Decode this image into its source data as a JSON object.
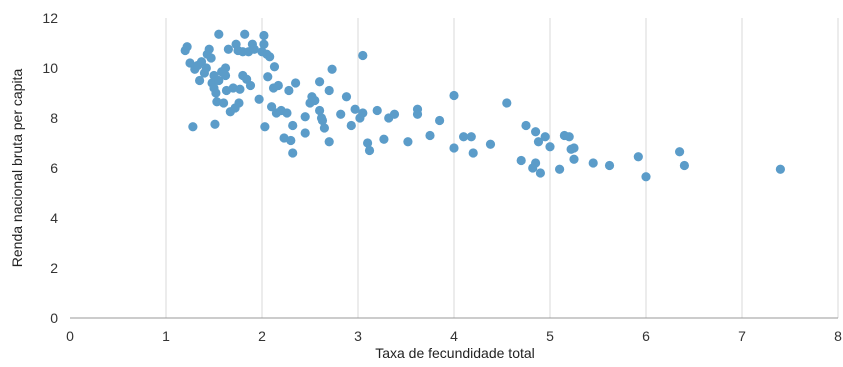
{
  "chart_data": {
    "type": "scatter",
    "title": "",
    "xlabel": "Taxa de fecundidade total",
    "ylabel": "Renda nacional bruta per capita",
    "xlim": [
      0,
      8
    ],
    "ylim": [
      0,
      12
    ],
    "x_ticks": [
      "0",
      "1",
      "2",
      "3",
      "4",
      "5",
      "6",
      "7",
      "8"
    ],
    "y_ticks": [
      "0",
      "2",
      "4",
      "6",
      "8",
      "10",
      "12"
    ],
    "grid": "vertical",
    "color": "#5b9cc9",
    "series": [
      {
        "points": [
          [
            1.2,
            10.7
          ],
          [
            1.22,
            10.85
          ],
          [
            1.25,
            10.2
          ],
          [
            1.28,
            7.65
          ],
          [
            1.3,
            9.95
          ],
          [
            1.33,
            10.1
          ],
          [
            1.35,
            9.5
          ],
          [
            1.37,
            10.25
          ],
          [
            1.4,
            9.8
          ],
          [
            1.42,
            10.0
          ],
          [
            1.43,
            10.55
          ],
          [
            1.45,
            10.75
          ],
          [
            1.47,
            10.4
          ],
          [
            1.48,
            9.4
          ],
          [
            1.5,
            9.7
          ],
          [
            1.5,
            9.2
          ],
          [
            1.51,
            7.75
          ],
          [
            1.52,
            9.0
          ],
          [
            1.53,
            8.65
          ],
          [
            1.55,
            9.5
          ],
          [
            1.55,
            11.35
          ],
          [
            1.58,
            9.85
          ],
          [
            1.6,
            8.6
          ],
          [
            1.62,
            10.0
          ],
          [
            1.62,
            9.7
          ],
          [
            1.63,
            9.1
          ],
          [
            1.65,
            10.75
          ],
          [
            1.67,
            8.25
          ],
          [
            1.7,
            9.2
          ],
          [
            1.72,
            8.4
          ],
          [
            1.73,
            10.95
          ],
          [
            1.75,
            10.7
          ],
          [
            1.76,
            8.6
          ],
          [
            1.77,
            9.15
          ],
          [
            1.8,
            10.65
          ],
          [
            1.8,
            9.7
          ],
          [
            1.82,
            11.35
          ],
          [
            1.84,
            9.55
          ],
          [
            1.86,
            10.65
          ],
          [
            1.88,
            9.3
          ],
          [
            1.9,
            10.95
          ],
          [
            1.92,
            10.75
          ],
          [
            1.97,
            8.75
          ],
          [
            2.0,
            10.65
          ],
          [
            2.02,
            11.3
          ],
          [
            2.02,
            10.95
          ],
          [
            2.03,
            7.65
          ],
          [
            2.05,
            10.55
          ],
          [
            2.06,
            9.65
          ],
          [
            2.08,
            10.45
          ],
          [
            2.1,
            8.45
          ],
          [
            2.12,
            9.2
          ],
          [
            2.13,
            10.05
          ],
          [
            2.15,
            8.2
          ],
          [
            2.17,
            9.3
          ],
          [
            2.2,
            8.3
          ],
          [
            2.23,
            7.2
          ],
          [
            2.26,
            8.2
          ],
          [
            2.28,
            9.1
          ],
          [
            2.3,
            7.1
          ],
          [
            2.32,
            6.6
          ],
          [
            2.32,
            7.7
          ],
          [
            2.35,
            9.4
          ],
          [
            2.45,
            8.05
          ],
          [
            2.45,
            7.4
          ],
          [
            2.5,
            8.6
          ],
          [
            2.52,
            8.85
          ],
          [
            2.55,
            8.7
          ],
          [
            2.6,
            8.3
          ],
          [
            2.6,
            9.45
          ],
          [
            2.62,
            8.0
          ],
          [
            2.63,
            7.9
          ],
          [
            2.65,
            7.6
          ],
          [
            2.7,
            9.1
          ],
          [
            2.7,
            7.05
          ],
          [
            2.73,
            9.95
          ],
          [
            2.82,
            8.15
          ],
          [
            2.88,
            8.85
          ],
          [
            2.93,
            7.7
          ],
          [
            2.97,
            8.35
          ],
          [
            3.02,
            8.0
          ],
          [
            3.05,
            10.5
          ],
          [
            3.05,
            8.2
          ],
          [
            3.1,
            7.0
          ],
          [
            3.12,
            6.7
          ],
          [
            3.2,
            8.3
          ],
          [
            3.27,
            7.15
          ],
          [
            3.32,
            8.0
          ],
          [
            3.38,
            8.15
          ],
          [
            3.52,
            7.05
          ],
          [
            3.62,
            8.35
          ],
          [
            3.62,
            8.15
          ],
          [
            3.75,
            7.3
          ],
          [
            3.85,
            7.9
          ],
          [
            4.0,
            8.9
          ],
          [
            4.0,
            6.8
          ],
          [
            4.1,
            7.25
          ],
          [
            4.18,
            7.25
          ],
          [
            4.2,
            6.6
          ],
          [
            4.38,
            6.95
          ],
          [
            4.55,
            8.6
          ],
          [
            4.7,
            6.3
          ],
          [
            4.75,
            7.7
          ],
          [
            4.82,
            6.0
          ],
          [
            4.85,
            6.2
          ],
          [
            4.85,
            7.45
          ],
          [
            4.88,
            7.05
          ],
          [
            4.9,
            5.8
          ],
          [
            4.95,
            7.25
          ],
          [
            5.0,
            6.85
          ],
          [
            5.1,
            5.95
          ],
          [
            5.15,
            7.3
          ],
          [
            5.2,
            7.25
          ],
          [
            5.22,
            6.75
          ],
          [
            5.25,
            6.8
          ],
          [
            5.25,
            6.35
          ],
          [
            5.45,
            6.2
          ],
          [
            5.62,
            6.1
          ],
          [
            5.92,
            6.45
          ],
          [
            6.0,
            5.65
          ],
          [
            6.35,
            6.65
          ],
          [
            6.4,
            6.1
          ],
          [
            7.4,
            5.95
          ]
        ]
      }
    ]
  }
}
